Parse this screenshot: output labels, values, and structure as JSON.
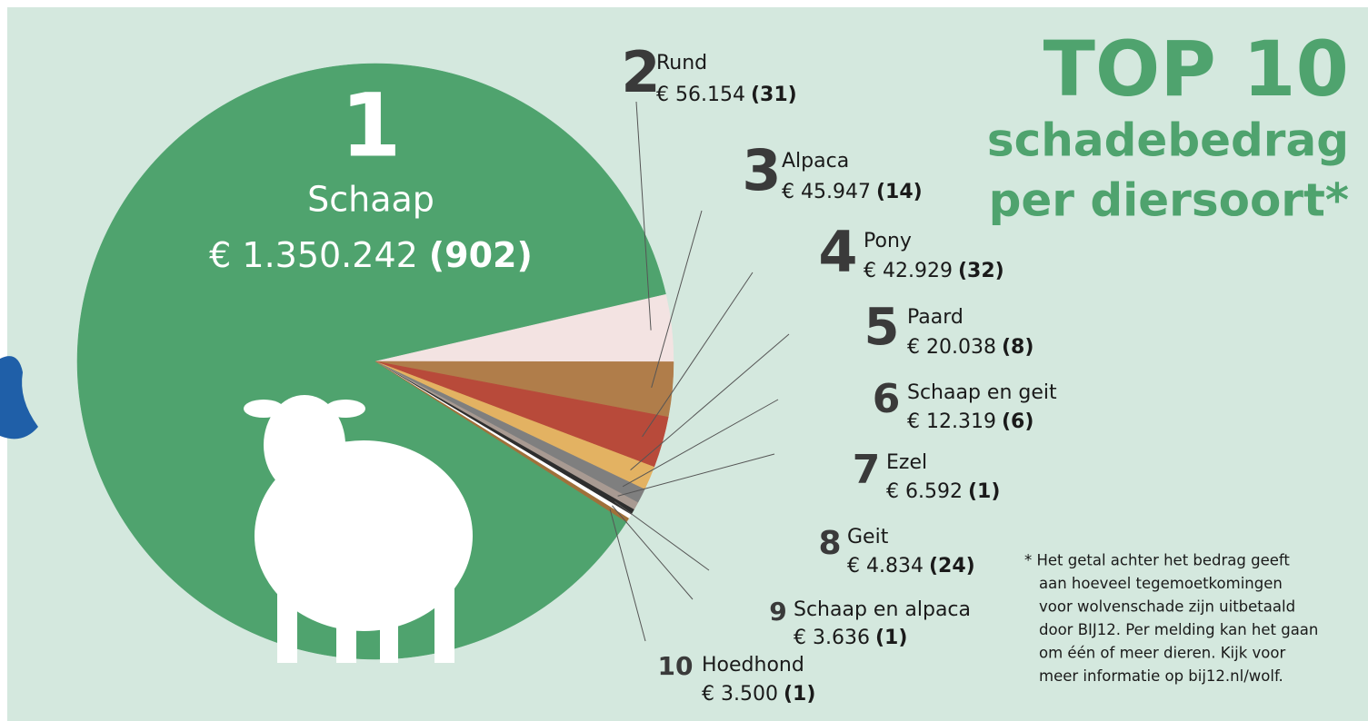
{
  "chart_data": {
    "type": "pie",
    "title_lines": [
      "TOP 10",
      "schadebedrag",
      "per diersoort*"
    ],
    "categories": [
      "Schaap",
      "Rund",
      "Alpaca",
      "Pony",
      "Paard",
      "Schaap en geit",
      "Ezel",
      "Geit",
      "Schaap en alpaca",
      "Hoedhond"
    ],
    "ranks": [
      1,
      2,
      3,
      4,
      5,
      6,
      7,
      8,
      9,
      10
    ],
    "values": [
      1350242,
      56154,
      45947,
      42929,
      20038,
      12319,
      6592,
      4834,
      3636,
      3500
    ],
    "value_labels": [
      "€ 1.350.242",
      "€ 56.154",
      "€ 45.947",
      "€ 42.929",
      "€ 20.038",
      "€ 12.319",
      "€ 6.592",
      "€ 4.834",
      "€ 3.636",
      "€ 3.500"
    ],
    "count_labels": [
      "(902)",
      "(31)",
      "(14)",
      "(32)",
      "(8)",
      "(6)",
      "(1)",
      "(24)",
      "(1)",
      "(1)"
    ],
    "colors": [
      "#4fa36e",
      "#f3e3e2",
      "#b07d4a",
      "#b84a3a",
      "#e3b262",
      "#7f7f7f",
      "#a89a92",
      "#2e2e2e",
      "#ffffff",
      "#a0703a"
    ],
    "footnote": [
      "* Het getal achter het bedrag geeft",
      "aan hoeveel tegemoetkomingen",
      "voor wolvenschade zijn uitbetaald",
      "door BIJ12. Per melding kan het gaan",
      "om één of meer dieren. Kijk voor",
      "meer informatie op bij12.nl/wolf."
    ]
  }
}
